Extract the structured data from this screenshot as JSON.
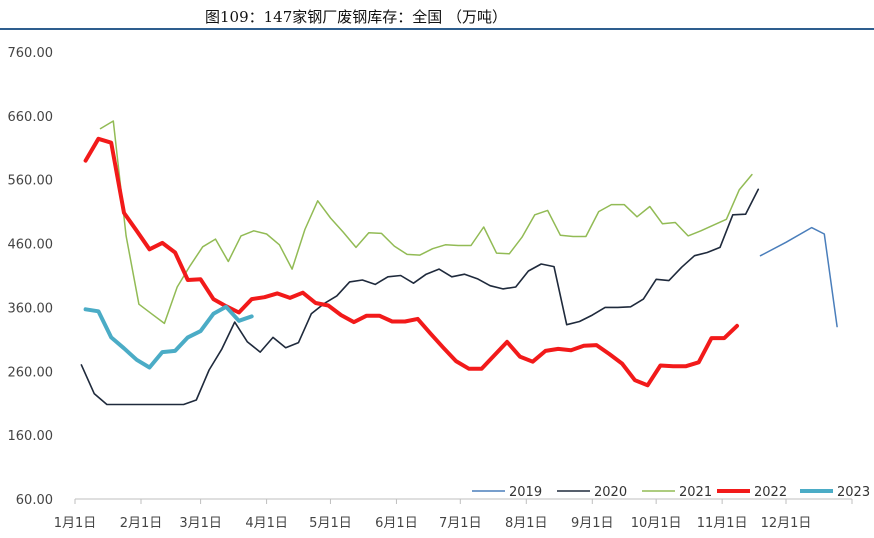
{
  "chart_data": {
    "type": "line",
    "title": "图109：147家钢厂废钢库存：全国 （万吨）",
    "ylim": [
      60,
      760
    ],
    "yticks": [
      "760.00",
      "660.00",
      "560.00",
      "460.00",
      "360.00",
      "260.00",
      "160.00",
      "60.00"
    ],
    "ytick_values": [
      760,
      660,
      560,
      460,
      360,
      260,
      160,
      60
    ],
    "xticks": [
      "1月1日",
      "2月1日",
      "3月1日",
      "4月1日",
      "5月1日",
      "6月1日",
      "7月1日",
      "8月1日",
      "9月1日",
      "10月1日",
      "11月1日",
      "12月1日"
    ],
    "xtick_days": [
      0,
      31,
      59,
      90,
      120,
      151,
      181,
      212,
      243,
      273,
      304,
      334
    ],
    "xlim_days": [
      0,
      365
    ],
    "grid": false,
    "legend_position": "bottom-right",
    "series": [
      {
        "name": "2019",
        "color": "#4a7ebb",
        "width": 1.5,
        "points": [
          [
            322,
            441
          ],
          [
            334,
            462
          ],
          [
            346,
            485
          ],
          [
            352,
            475
          ],
          [
            358,
            330
          ]
        ]
      },
      {
        "name": "2020",
        "color": "#1f2a3c",
        "width": 1.6,
        "points": [
          [
            3,
            270
          ],
          [
            9,
            225
          ],
          [
            15,
            208
          ],
          [
            21,
            208
          ],
          [
            27,
            208
          ],
          [
            33,
            208
          ],
          [
            39,
            208
          ],
          [
            45,
            208
          ],
          [
            51,
            208
          ],
          [
            57,
            215
          ],
          [
            63,
            262
          ],
          [
            69,
            295
          ],
          [
            75,
            337
          ],
          [
            81,
            306
          ],
          [
            87,
            290
          ],
          [
            93,
            313
          ],
          [
            99,
            297
          ],
          [
            105,
            305
          ],
          [
            111,
            350
          ],
          [
            117,
            366
          ],
          [
            123,
            378
          ],
          [
            129,
            400
          ],
          [
            135,
            403
          ],
          [
            141,
            396
          ],
          [
            147,
            408
          ],
          [
            153,
            410
          ],
          [
            159,
            398
          ],
          [
            165,
            412
          ],
          [
            171,
            420
          ],
          [
            177,
            408
          ],
          [
            183,
            412
          ],
          [
            189,
            405
          ],
          [
            195,
            394
          ],
          [
            201,
            389
          ],
          [
            207,
            392
          ],
          [
            213,
            417
          ],
          [
            219,
            428
          ],
          [
            225,
            424
          ],
          [
            231,
            333
          ],
          [
            237,
            338
          ],
          [
            243,
            348
          ],
          [
            249,
            360
          ],
          [
            255,
            360
          ],
          [
            261,
            361
          ],
          [
            267,
            373
          ],
          [
            273,
            404
          ],
          [
            279,
            402
          ],
          [
            285,
            423
          ],
          [
            291,
            441
          ],
          [
            297,
            446
          ],
          [
            303,
            454
          ],
          [
            309,
            505
          ],
          [
            315,
            506
          ],
          [
            321,
            545
          ]
        ]
      },
      {
        "name": "2021",
        "color": "#92bb55",
        "width": 1.5,
        "points": [
          [
            12,
            640
          ],
          [
            18,
            652
          ],
          [
            24,
            472
          ],
          [
            30,
            365
          ],
          [
            36,
            350
          ],
          [
            42,
            335
          ],
          [
            48,
            392
          ],
          [
            54,
            425
          ],
          [
            60,
            455
          ],
          [
            66,
            467
          ],
          [
            72,
            432
          ],
          [
            78,
            472
          ],
          [
            84,
            480
          ],
          [
            90,
            475
          ],
          [
            96,
            458
          ],
          [
            102,
            420
          ],
          [
            108,
            482
          ],
          [
            114,
            527
          ],
          [
            120,
            500
          ],
          [
            126,
            478
          ],
          [
            132,
            454
          ],
          [
            138,
            477
          ],
          [
            144,
            476
          ],
          [
            150,
            456
          ],
          [
            156,
            443
          ],
          [
            162,
            442
          ],
          [
            168,
            452
          ],
          [
            174,
            458
          ],
          [
            180,
            457
          ],
          [
            186,
            457
          ],
          [
            192,
            486
          ],
          [
            198,
            445
          ],
          [
            204,
            444
          ],
          [
            210,
            470
          ],
          [
            216,
            505
          ],
          [
            222,
            512
          ],
          [
            228,
            473
          ],
          [
            234,
            471
          ],
          [
            240,
            471
          ],
          [
            246,
            510
          ],
          [
            252,
            521
          ],
          [
            258,
            521
          ],
          [
            264,
            502
          ],
          [
            270,
            518
          ],
          [
            276,
            491
          ],
          [
            282,
            493
          ],
          [
            288,
            472
          ],
          [
            294,
            480
          ],
          [
            300,
            489
          ],
          [
            306,
            498
          ],
          [
            312,
            544
          ],
          [
            318,
            568
          ]
        ]
      },
      {
        "name": "2022",
        "color": "#f21a1a",
        "width": 4,
        "points": [
          [
            5,
            590
          ],
          [
            11,
            624
          ],
          [
            17,
            618
          ],
          [
            23,
            508
          ],
          [
            29,
            480
          ],
          [
            35,
            451
          ],
          [
            41,
            461
          ],
          [
            47,
            446
          ],
          [
            53,
            403
          ],
          [
            59,
            404
          ],
          [
            65,
            373
          ],
          [
            71,
            362
          ],
          [
            77,
            352
          ],
          [
            83,
            373
          ],
          [
            89,
            376
          ],
          [
            95,
            382
          ],
          [
            101,
            375
          ],
          [
            107,
            383
          ],
          [
            113,
            367
          ],
          [
            119,
            363
          ],
          [
            125,
            348
          ],
          [
            131,
            337
          ],
          [
            137,
            347
          ],
          [
            143,
            347
          ],
          [
            149,
            338
          ],
          [
            155,
            338
          ],
          [
            161,
            342
          ],
          [
            167,
            319
          ],
          [
            173,
            297
          ],
          [
            179,
            276
          ],
          [
            185,
            264
          ],
          [
            191,
            264
          ],
          [
            197,
            285
          ],
          [
            203,
            306
          ],
          [
            209,
            283
          ],
          [
            215,
            275
          ],
          [
            221,
            292
          ],
          [
            227,
            295
          ],
          [
            233,
            293
          ],
          [
            239,
            300
          ],
          [
            245,
            301
          ],
          [
            251,
            287
          ],
          [
            257,
            272
          ],
          [
            263,
            246
          ],
          [
            269,
            238
          ],
          [
            275,
            269
          ],
          [
            281,
            268
          ],
          [
            287,
            268
          ],
          [
            293,
            274
          ],
          [
            299,
            312
          ],
          [
            305,
            312
          ],
          [
            311,
            331
          ]
        ]
      },
      {
        "name": "2023",
        "color": "#4bacc6",
        "width": 4,
        "points": [
          [
            5,
            357
          ],
          [
            11,
            354
          ],
          [
            17,
            313
          ],
          [
            23,
            296
          ],
          [
            29,
            278
          ],
          [
            35,
            266
          ],
          [
            41,
            290
          ],
          [
            47,
            292
          ],
          [
            53,
            313
          ],
          [
            59,
            323
          ],
          [
            65,
            350
          ],
          [
            71,
            361
          ],
          [
            77,
            339
          ],
          [
            83,
            346
          ]
        ]
      }
    ]
  }
}
